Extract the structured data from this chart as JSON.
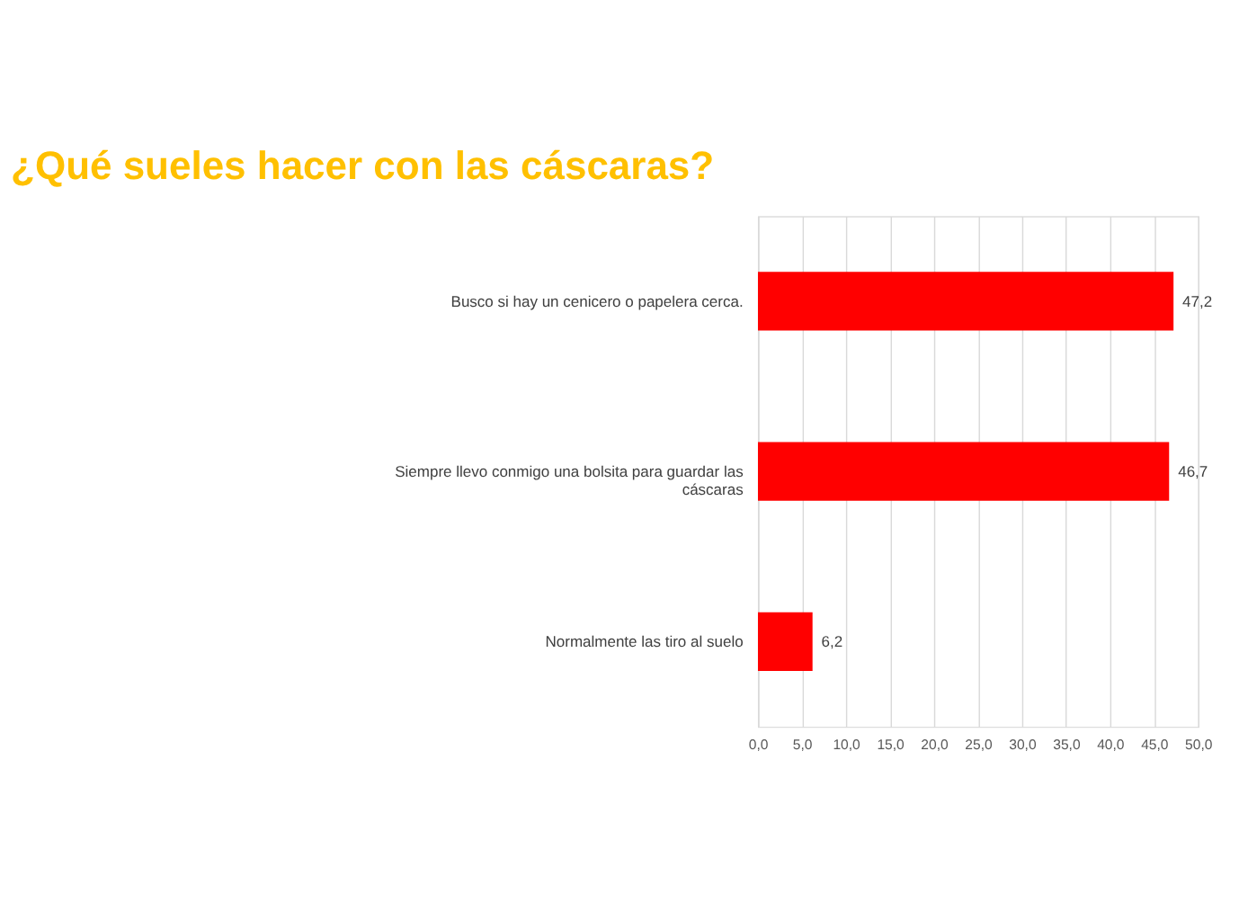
{
  "chart_data": {
    "type": "bar",
    "orientation": "horizontal",
    "title": "¿Qué sueles hacer con las cáscaras?",
    "categories": [
      "Busco si hay un cenicero o papelera cerca.",
      "Siempre llevo conmigo una bolsita para guardar las cáscaras",
      "Normalmente las tiro al suelo"
    ],
    "values": [
      47.2,
      46.7,
      6.2
    ],
    "value_labels": [
      "47,2",
      "46,7",
      "6,2"
    ],
    "color": "#ff0000",
    "xlim": [
      0,
      50
    ],
    "xticks": [
      {
        "value": 0,
        "label": "0,0"
      },
      {
        "value": 5,
        "label": "5,0"
      },
      {
        "value": 10,
        "label": "10,0"
      },
      {
        "value": 15,
        "label": "15,0"
      },
      {
        "value": 20,
        "label": "20,0"
      },
      {
        "value": 25,
        "label": "25,0"
      },
      {
        "value": 30,
        "label": "30,0"
      },
      {
        "value": 35,
        "label": "35,0"
      },
      {
        "value": 40,
        "label": "40,0"
      },
      {
        "value": 45,
        "label": "45,0"
      },
      {
        "value": 50,
        "label": "50,0"
      }
    ],
    "grid": "x"
  }
}
